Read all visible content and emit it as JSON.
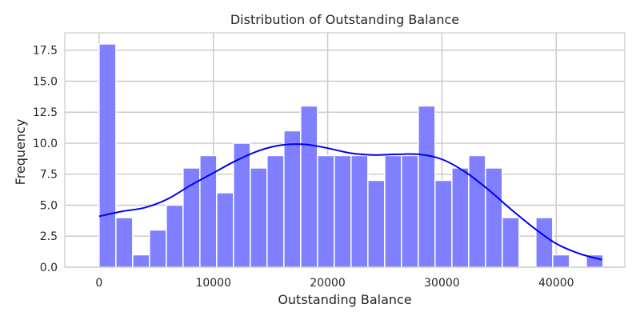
{
  "chart_data": {
    "type": "bar",
    "subtype": "histogram-with-kde",
    "title": "Distribution of Outstanding Balance",
    "xlabel": "Outstanding Balance",
    "ylabel": "Frequency",
    "xlim": [
      -3000,
      46000
    ],
    "ylim": [
      0,
      18.9
    ],
    "grid": true,
    "x_ticks": [
      0,
      10000,
      20000,
      30000,
      40000
    ],
    "x_tick_labels": [
      "0",
      "10000",
      "20000",
      "30000",
      "40000"
    ],
    "y_ticks": [
      0,
      2.5,
      5,
      7.5,
      10,
      12.5,
      15,
      17.5
    ],
    "y_tick_labels": [
      "0.0",
      "2.5",
      "5.0",
      "7.5",
      "10.0",
      "12.5",
      "15.0",
      "17.5"
    ],
    "bar_color": "#7f7fff",
    "kde_color": "#0000ee",
    "bin_start": 0,
    "bin_width": 1470,
    "counts": [
      18,
      4,
      1,
      3,
      5,
      8,
      9,
      6,
      10,
      8,
      9,
      11,
      13,
      9,
      9,
      9,
      7,
      9,
      9,
      13,
      7,
      8,
      9,
      8,
      4,
      0,
      4,
      1,
      0,
      1
    ],
    "kde": {
      "x": [
        0,
        2000,
        4000,
        6000,
        8000,
        10000,
        12000,
        14000,
        16000,
        18000,
        20000,
        22000,
        24000,
        26000,
        28000,
        30000,
        32000,
        34000,
        36000,
        38000,
        40000,
        42000,
        44000
      ],
      "y": [
        4.1,
        4.5,
        4.8,
        5.5,
        6.6,
        7.6,
        8.6,
        9.4,
        9.85,
        9.9,
        9.6,
        9.2,
        9.05,
        9.1,
        9.1,
        8.7,
        7.7,
        6.3,
        4.7,
        3.2,
        1.9,
        1.1,
        0.6
      ]
    }
  }
}
